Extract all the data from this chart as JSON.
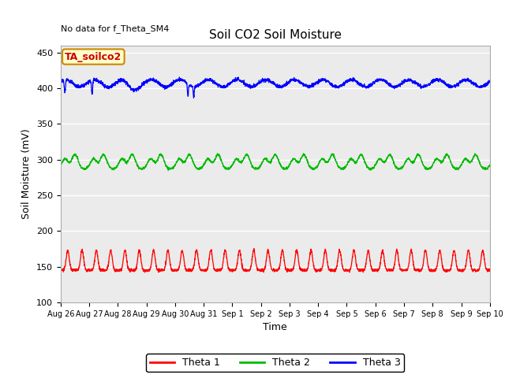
{
  "title": "Soil CO2 Soil Moisture",
  "xlabel": "Time",
  "ylabel": "Soil Moisture (mV)",
  "note": "No data for f_Theta_SM4",
  "annotation": "TA_soilco2",
  "ylim": [
    100,
    460
  ],
  "yticks": [
    100,
    150,
    200,
    250,
    300,
    350,
    400,
    450
  ],
  "xtick_labels": [
    "Aug 26",
    "Aug 27",
    "Aug 28",
    "Aug 29",
    "Aug 30",
    "Aug 31",
    "Sep 1",
    "Sep 2",
    "Sep 3",
    "Sep 4",
    "Sep 5",
    "Sep 6",
    "Sep 7",
    "Sep 8",
    "Sep 9",
    "Sep 10"
  ],
  "colors": {
    "theta1": "#FF0000",
    "theta2": "#00BB00",
    "theta3": "#0000FF",
    "background": "#EBEBEB",
    "annotation_bg": "#FFFFCC",
    "annotation_border": "#CC8800"
  },
  "legend_labels": [
    "Theta 1",
    "Theta 2",
    "Theta 3"
  ],
  "theta1_base": 145,
  "theta1_amp": 28,
  "theta2_base": 287,
  "theta2_amp": 20,
  "theta3_base": 407,
  "theta3_amp": 5,
  "n_days": 15
}
